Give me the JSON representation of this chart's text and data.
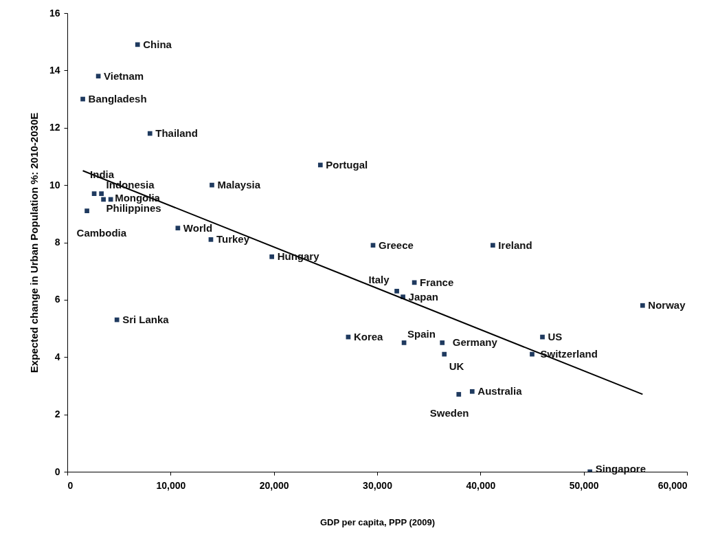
{
  "chart_data": {
    "type": "scatter",
    "xlabel": "GDP per capita, PPP (2009)",
    "ylabel": "Expected change in Urban Population %: 2010-2030E",
    "marker": "square",
    "grid": false,
    "xlim": [
      0,
      60000
    ],
    "ylim": [
      0,
      16
    ],
    "xticks": [
      0,
      {
        "value": 10000,
        "label": "10,000"
      },
      {
        "value": 20000,
        "label": "20,000"
      },
      {
        "value": 30000,
        "label": "30,000"
      },
      {
        "value": 40000,
        "label": "40,000"
      },
      {
        "value": 50000,
        "label": "50,000"
      },
      {
        "value": 60000,
        "label": "60,000"
      }
    ],
    "yticks": [
      0,
      2,
      4,
      6,
      8,
      10,
      12,
      14,
      16
    ],
    "series": [
      {
        "name": "China",
        "color": "#1f3a5f",
        "x": [
          6800
        ],
        "values": [
          14.9
        ]
      },
      {
        "name": "Vietnam",
        "color": "#1f3a5f",
        "x": [
          3000
        ],
        "values": [
          13.8
        ]
      },
      {
        "name": "Bangladesh",
        "color": "#1f3a5f",
        "x": [
          1500
        ],
        "values": [
          13.0
        ]
      },
      {
        "name": "Thailand",
        "color": "#1f3a5f",
        "x": [
          8000
        ],
        "values": [
          11.8
        ]
      },
      {
        "name": "Portugal",
        "color": "#1f3a5f",
        "x": [
          24500
        ],
        "values": [
          10.7
        ]
      },
      {
        "name": "Malaysia",
        "color": "#1f3a5f",
        "x": [
          14000
        ],
        "values": [
          10.0
        ]
      },
      {
        "name": "India",
        "color": "#1f3a5f",
        "x": [
          2600
        ],
        "values": [
          9.7
        ]
      },
      {
        "name": "Indonesia",
        "color": "#1f3a5f",
        "x": [
          3300
        ],
        "values": [
          9.7
        ]
      },
      {
        "name": "Mongolia",
        "color": "#1f3a5f",
        "x": [
          4200
        ],
        "values": [
          9.5
        ]
      },
      {
        "name": "Philippines",
        "color": "#1f3a5f",
        "x": [
          3500
        ],
        "values": [
          9.5
        ]
      },
      {
        "name": "Cambodia",
        "color": "#1f3a5f",
        "x": [
          1900
        ],
        "values": [
          9.1
        ]
      },
      {
        "name": "World",
        "color": "#1f3a5f",
        "x": [
          10700
        ],
        "values": [
          8.5
        ]
      },
      {
        "name": "Turkey",
        "color": "#1f3a5f",
        "x": [
          13900
        ],
        "values": [
          8.1
        ]
      },
      {
        "name": "Hungary",
        "color": "#1f3a5f",
        "x": [
          19800
        ],
        "values": [
          7.5
        ]
      },
      {
        "name": "Greece",
        "color": "#1f3a5f",
        "x": [
          29600
        ],
        "values": [
          7.9
        ]
      },
      {
        "name": "Ireland",
        "color": "#1f3a5f",
        "x": [
          41200
        ],
        "values": [
          7.9
        ]
      },
      {
        "name": "Italy",
        "color": "#1f3a5f",
        "x": [
          31900
        ],
        "values": [
          6.3
        ]
      },
      {
        "name": "Japan",
        "color": "#1f3a5f",
        "x": [
          32500
        ],
        "values": [
          6.1
        ]
      },
      {
        "name": "France",
        "color": "#1f3a5f",
        "x": [
          33600
        ],
        "values": [
          6.6
        ]
      },
      {
        "name": "Norway",
        "color": "#1f3a5f",
        "x": [
          55700
        ],
        "values": [
          5.8
        ]
      },
      {
        "name": "Sri Lanka",
        "color": "#1f3a5f",
        "x": [
          4800
        ],
        "values": [
          5.3
        ]
      },
      {
        "name": "Korea",
        "color": "#1f3a5f",
        "x": [
          27200
        ],
        "values": [
          4.7
        ]
      },
      {
        "name": "Spain",
        "color": "#1f3a5f",
        "x": [
          32600
        ],
        "values": [
          4.5
        ]
      },
      {
        "name": "Germany",
        "color": "#1f3a5f",
        "x": [
          36300
        ],
        "values": [
          4.5
        ]
      },
      {
        "name": "UK",
        "color": "#1f3a5f",
        "x": [
          36500
        ],
        "values": [
          4.1
        ]
      },
      {
        "name": "US",
        "color": "#1f3a5f",
        "x": [
          46000
        ],
        "values": [
          4.7
        ]
      },
      {
        "name": "Switzerland",
        "color": "#1f3a5f",
        "x": [
          45000
        ],
        "values": [
          4.1
        ]
      },
      {
        "name": "Sweden",
        "color": "#1f3a5f",
        "x": [
          37900
        ],
        "values": [
          2.7
        ]
      },
      {
        "name": "Australia",
        "color": "#1f3a5f",
        "x": [
          39200
        ],
        "values": [
          2.8
        ]
      },
      {
        "name": "Singapore",
        "color": "#1f3a5f",
        "x": [
          50600
        ],
        "values": [
          0.0
        ]
      },
      {
        "type": "line",
        "marker": "none",
        "color": "#000000",
        "x": [
          1500,
          55700
        ],
        "values": [
          10.5,
          2.7
        ]
      }
    ]
  }
}
